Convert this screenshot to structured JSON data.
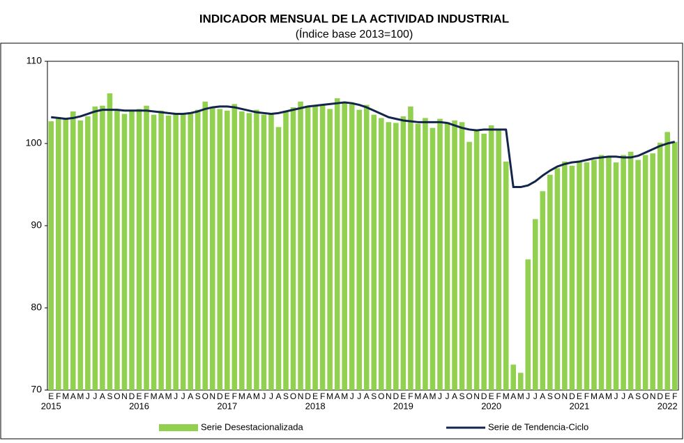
{
  "chart_data": {
    "type": "bar+line",
    "title": "INDICADOR MENSUAL DE LA ACTIVIDAD INDUSTRIAL",
    "subtitle": "(Índice base 2013=100)",
    "categories": [
      "E",
      "F",
      "M",
      "A",
      "M",
      "J",
      "J",
      "A",
      "S",
      "O",
      "N",
      "D",
      "E",
      "F",
      "M",
      "A",
      "M",
      "J",
      "J",
      "A",
      "S",
      "O",
      "N",
      "D",
      "E",
      "F",
      "M",
      "A",
      "M",
      "J",
      "J",
      "A",
      "S",
      "O",
      "N",
      "D",
      "E",
      "F",
      "M",
      "A",
      "M",
      "J",
      "J",
      "A",
      "S",
      "O",
      "N",
      "D",
      "E",
      "F",
      "M",
      "A",
      "M",
      "J",
      "J",
      "A",
      "S",
      "O",
      "N",
      "D",
      "E",
      "F",
      "M",
      "A",
      "M",
      "J",
      "J",
      "A",
      "S",
      "O",
      "N",
      "D",
      "E",
      "F",
      "M",
      "A",
      "M",
      "J",
      "J",
      "A",
      "S",
      "O",
      "N",
      "D",
      "E",
      "F"
    ],
    "years": [
      "2015",
      null,
      null,
      null,
      null,
      null,
      null,
      null,
      null,
      null,
      null,
      null,
      "2016",
      null,
      null,
      null,
      null,
      null,
      null,
      null,
      null,
      null,
      null,
      null,
      "2017",
      null,
      null,
      null,
      null,
      null,
      null,
      null,
      null,
      null,
      null,
      null,
      "2018",
      null,
      null,
      null,
      null,
      null,
      null,
      null,
      null,
      null,
      null,
      null,
      "2019",
      null,
      null,
      null,
      null,
      null,
      null,
      null,
      null,
      null,
      null,
      null,
      "2020",
      null,
      null,
      null,
      null,
      null,
      null,
      null,
      null,
      null,
      null,
      null,
      "2021",
      null,
      null,
      null,
      null,
      null,
      null,
      null,
      null,
      null,
      null,
      null,
      "2022",
      null
    ],
    "series": [
      {
        "name": "Serie Desestacionalizada",
        "kind": "bar",
        "color": "#92d050",
        "values": [
          102.7,
          103.2,
          103.0,
          103.9,
          102.8,
          103.3,
          104.5,
          104.6,
          106.1,
          104.1,
          103.6,
          104.1,
          104.2,
          104.6,
          103.5,
          104.0,
          103.4,
          103.6,
          103.5,
          103.8,
          104.1,
          105.1,
          104.4,
          104.2,
          104.0,
          104.8,
          103.9,
          103.7,
          104.1,
          103.5,
          103.6,
          102.0,
          103.9,
          104.4,
          105.1,
          104.5,
          104.6,
          104.7,
          104.2,
          105.5,
          105.0,
          104.8,
          104.1,
          104.7,
          103.5,
          103.1,
          102.6,
          102.5,
          103.3,
          104.5,
          102.4,
          103.1,
          101.9,
          103.0,
          102.6,
          102.8,
          102.6,
          100.2,
          101.6,
          101.2,
          102.2,
          101.8,
          97.8,
          73.1,
          72.1,
          85.9,
          90.8,
          94.2,
          96.2,
          97.0,
          97.8,
          97.3,
          97.9,
          97.7,
          98.0,
          98.6,
          98.5,
          97.7,
          98.6,
          99.0,
          98.0,
          98.6,
          98.8,
          100.1,
          101.4,
          100.2
        ]
      },
      {
        "name": "Serie de Tendencia-Ciclo",
        "kind": "line",
        "color": "#13254a",
        "values": [
          103.2,
          103.1,
          103.0,
          103.1,
          103.3,
          103.6,
          103.9,
          104.1,
          104.1,
          104.1,
          104.0,
          104.0,
          104.0,
          104.0,
          103.9,
          103.8,
          103.7,
          103.6,
          103.6,
          103.7,
          103.9,
          104.2,
          104.4,
          104.5,
          104.5,
          104.4,
          104.2,
          104.0,
          103.8,
          103.7,
          103.6,
          103.7,
          103.9,
          104.1,
          104.3,
          104.5,
          104.6,
          104.7,
          104.8,
          104.9,
          105.0,
          104.9,
          104.7,
          104.4,
          104.0,
          103.6,
          103.2,
          103.0,
          102.8,
          102.7,
          102.6,
          102.6,
          102.6,
          102.6,
          102.5,
          102.2,
          101.9,
          101.7,
          101.6,
          101.7,
          101.7,
          101.7,
          101.7,
          94.7,
          94.7,
          94.9,
          95.4,
          96.1,
          96.7,
          97.2,
          97.5,
          97.7,
          97.8,
          98.0,
          98.2,
          98.3,
          98.4,
          98.4,
          98.3,
          98.3,
          98.5,
          98.9,
          99.3,
          99.7,
          100.0,
          100.2
        ]
      }
    ],
    "ylim": [
      70,
      110
    ],
    "yticks": [
      70,
      80,
      90,
      100,
      110
    ],
    "grid": false
  }
}
